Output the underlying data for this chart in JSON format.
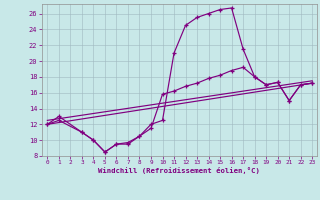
{
  "xlabel": "Windchill (Refroidissement éolien,°C)",
  "bg_color": "#c8e8e8",
  "line_color": "#800080",
  "grid_color": "#a0b8c0",
  "spine_color": "#909090",
  "xlim": [
    -0.5,
    23.4
  ],
  "ylim": [
    8,
    27.2
  ],
  "yticks": [
    8,
    10,
    12,
    14,
    16,
    18,
    20,
    22,
    24,
    26
  ],
  "xticks": [
    0,
    1,
    2,
    3,
    4,
    5,
    6,
    7,
    8,
    9,
    10,
    11,
    12,
    13,
    14,
    15,
    16,
    17,
    18,
    19,
    20,
    21,
    22,
    23
  ],
  "curve_high": {
    "x": [
      0,
      1,
      3,
      4,
      5,
      6,
      7,
      8,
      9,
      10,
      11,
      12,
      13,
      14,
      15,
      16,
      17,
      18,
      19,
      20,
      21,
      22,
      23
    ],
    "y": [
      12,
      13,
      11,
      10,
      8.5,
      9.5,
      9.5,
      10.5,
      12,
      12.5,
      21,
      24.5,
      25.5,
      26,
      26.5,
      26.7,
      21.5,
      18,
      17,
      17.3,
      15,
      17,
      17.2
    ]
  },
  "curve_mid": {
    "x": [
      0,
      1,
      3,
      4,
      5,
      6,
      7,
      8,
      9,
      10,
      11,
      12,
      13,
      14,
      15,
      16,
      17,
      18,
      19,
      20,
      21,
      22,
      23
    ],
    "y": [
      12,
      12.5,
      11,
      10,
      8.5,
      9.5,
      9.7,
      10.5,
      11.5,
      15.8,
      16.2,
      16.8,
      17.2,
      17.8,
      18.2,
      18.8,
      19.2,
      18,
      17,
      17.3,
      15,
      17,
      17.2
    ]
  },
  "line_diag1": {
    "x": [
      0,
      23
    ],
    "y": [
      12,
      17.2
    ]
  },
  "line_diag2": {
    "x": [
      0,
      23
    ],
    "y": [
      12.5,
      17.5
    ]
  }
}
